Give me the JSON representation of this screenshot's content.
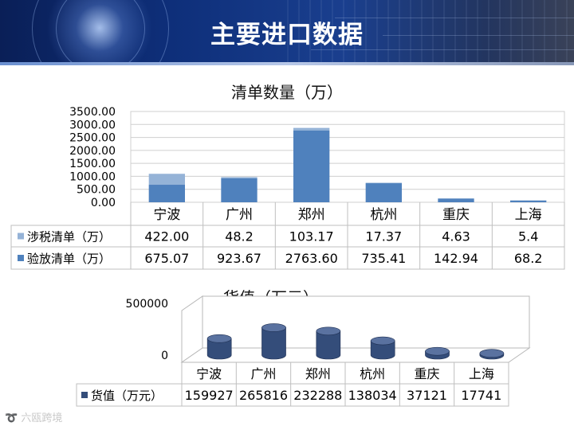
{
  "page": {
    "title": "主要进口数据",
    "watermark": "六瓯跨境"
  },
  "chart_data": [
    {
      "type": "bar",
      "stacked": true,
      "title": "清单数量（万）",
      "categories": [
        "宁波",
        "广州",
        "郑州",
        "杭州",
        "重庆",
        "上海"
      ],
      "series": [
        {
          "name": "涉税清单（万）",
          "values": [
            422.0,
            48.2,
            103.17,
            17.37,
            4.63,
            5.4
          ],
          "labels": [
            "422.00",
            "48.2",
            "103.17",
            "17.37",
            "4.63",
            "5.4"
          ],
          "color": "#95b3d7"
        },
        {
          "name": "验放清单（万）",
          "values": [
            675.07,
            923.67,
            2763.6,
            735.41,
            142.94,
            68.2
          ],
          "labels": [
            "675.07",
            "923.67",
            "2763.60",
            "735.41",
            "142.94",
            "68.2"
          ],
          "color": "#4f81bd"
        }
      ],
      "ylim": [
        0,
        3500
      ],
      "yticks": [
        "0.00",
        "500.00",
        "1000.00",
        "1500.00",
        "2000.00",
        "2500.00",
        "3000.00",
        "3500.00"
      ],
      "grid": true,
      "legend": "data-table"
    },
    {
      "type": "bar",
      "style": "3d-cylinder",
      "title": "货值（万元）",
      "categories": [
        "宁波",
        "广州",
        "郑州",
        "杭州",
        "重庆",
        "上海"
      ],
      "series": [
        {
          "name": "货值（万元）",
          "values": [
            159927,
            265816,
            232288,
            138034,
            37121,
            17741
          ],
          "labels": [
            "159927",
            "265816",
            "232288",
            "138034",
            "37121",
            "17741"
          ],
          "color": "#344d7a"
        }
      ],
      "ylim": [
        0,
        500000
      ],
      "yticks": [
        "0",
        "500000"
      ],
      "legend": "data-table"
    }
  ]
}
